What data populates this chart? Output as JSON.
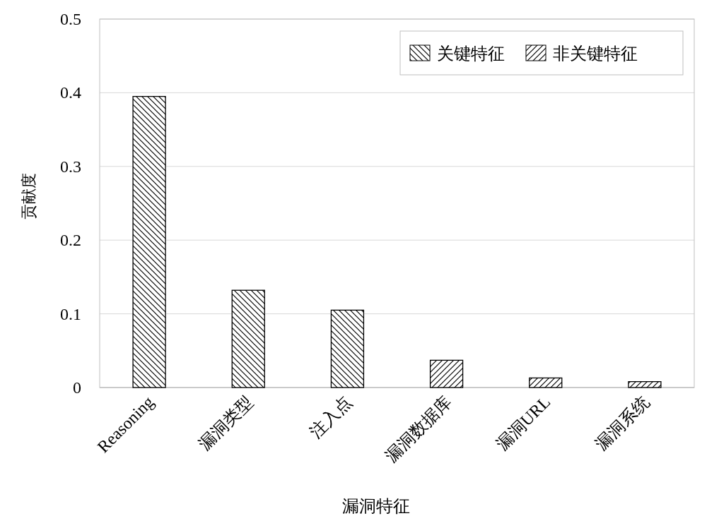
{
  "chart_data": {
    "type": "bar",
    "xlabel": "漏洞特征",
    "ylabel": "贡献度",
    "categories": [
      "Reasoning",
      "漏洞类型",
      "注入点",
      "漏洞数据库",
      "漏洞URL",
      "漏洞系统"
    ],
    "series": [
      {
        "name": "关键特征",
        "color": "#000000",
        "values": [
          0.395,
          0.132,
          0.105,
          null,
          null,
          null
        ]
      },
      {
        "name": "非关键特征",
        "color": "#000000",
        "values": [
          null,
          null,
          null,
          0.037,
          0.013,
          0.008
        ]
      }
    ],
    "ylim": [
      0,
      0.5
    ],
    "yticks": [
      0,
      0.1,
      0.2,
      0.3,
      0.4,
      0.5
    ],
    "grid": "y",
    "legend": "top right"
  }
}
